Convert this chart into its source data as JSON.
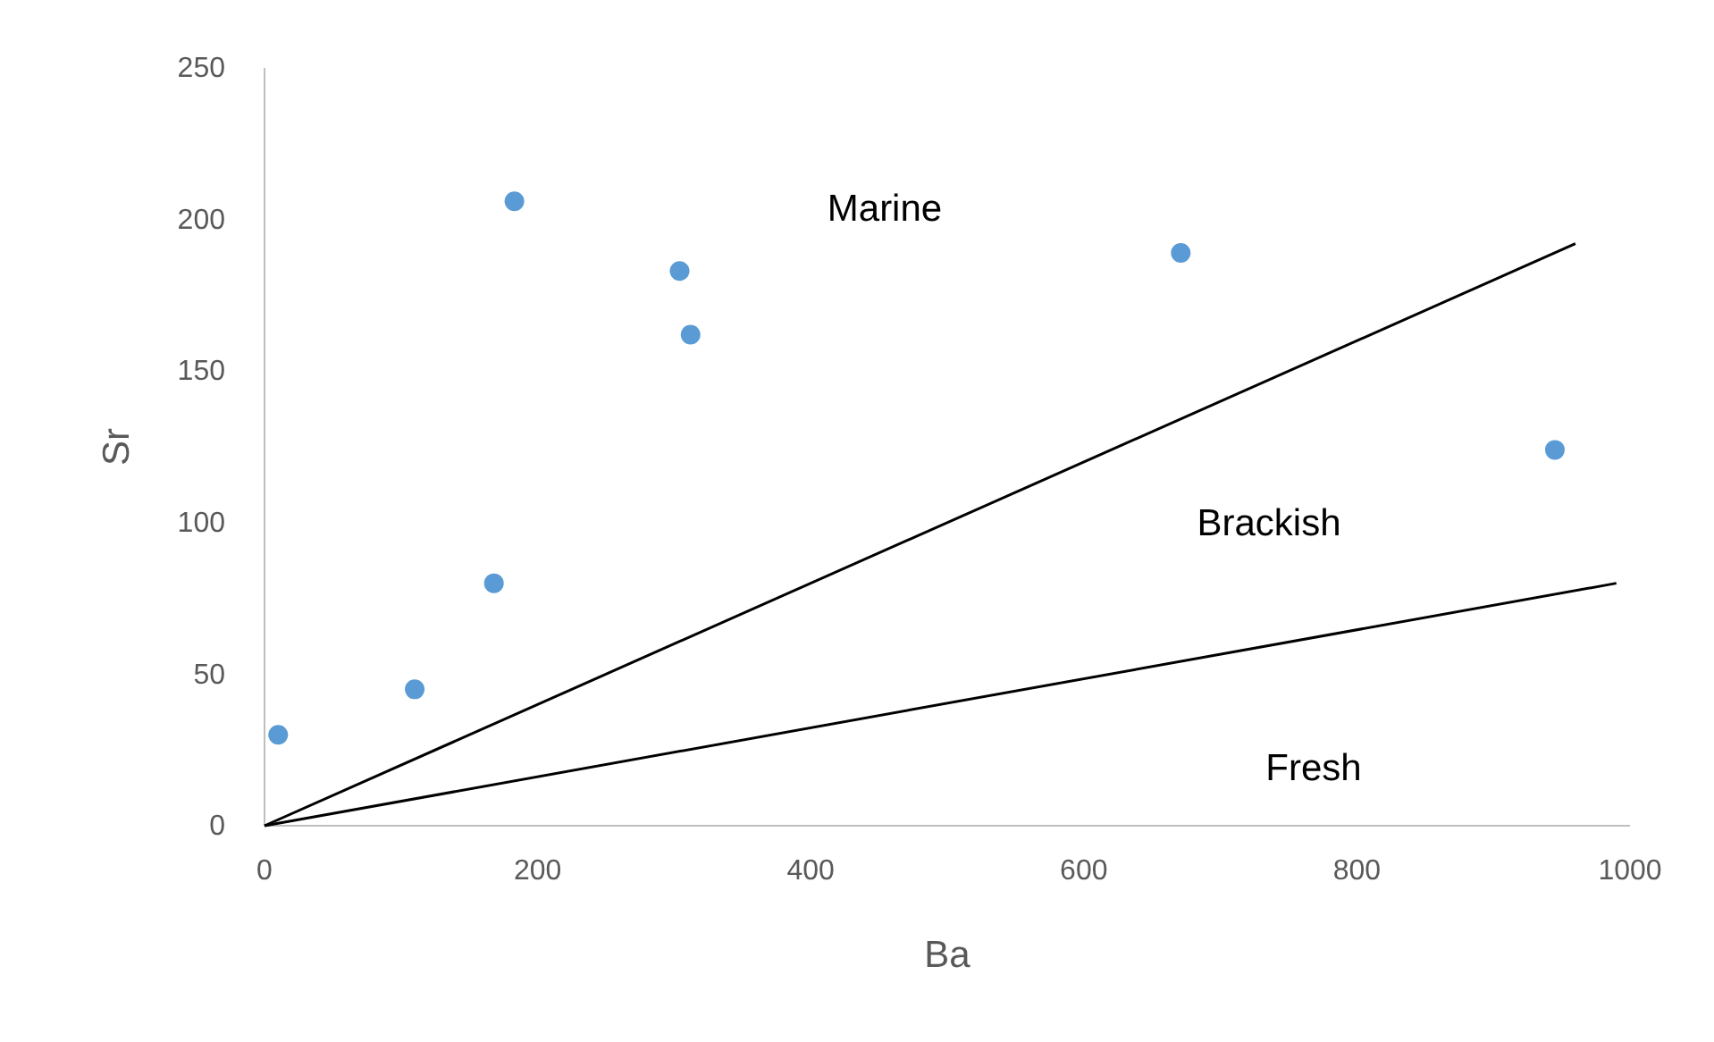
{
  "chart_data": {
    "type": "scatter",
    "xlabel": "Ba",
    "ylabel": "Sr",
    "xlim": [
      0,
      1000
    ],
    "ylim": [
      0,
      250
    ],
    "xticks": [
      0,
      200,
      400,
      600,
      800,
      1000
    ],
    "yticks": [
      0,
      50,
      100,
      150,
      200,
      250
    ],
    "grid": false,
    "series": [
      {
        "color": "#5b9bd5",
        "marker": "circle",
        "x": [
          10,
          110,
          168,
          183,
          304,
          312,
          671,
          945
        ],
        "values": [
          30,
          45,
          80,
          206,
          183,
          162,
          189,
          124
        ]
      },
      {
        "type": "line",
        "color": "#000000",
        "marker": "none",
        "x": [
          0,
          960
        ],
        "values": [
          0,
          192
        ]
      },
      {
        "type": "line",
        "color": "#000000",
        "marker": "none",
        "x": [
          0,
          990
        ],
        "values": [
          0,
          80
        ]
      }
    ],
    "annotations": [
      "Marine",
      "Brackish",
      "Fresh"
    ]
  }
}
